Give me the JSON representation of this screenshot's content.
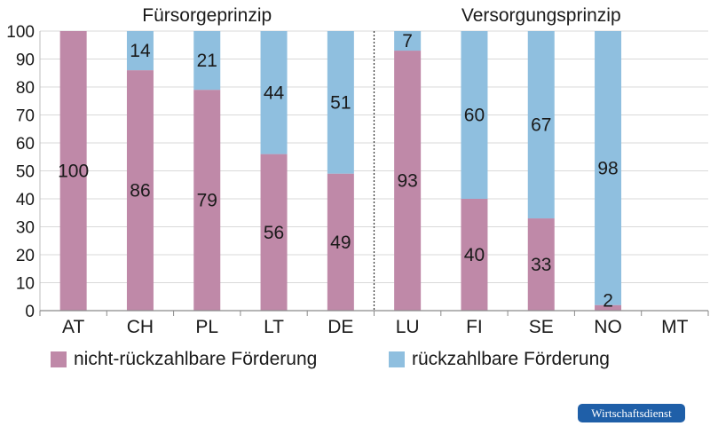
{
  "chart_data": {
    "type": "bar",
    "stacked": true,
    "categories": [
      "AT",
      "CH",
      "PL",
      "LT",
      "DE",
      "LU",
      "FI",
      "SE",
      "NO",
      "MT"
    ],
    "groups": [
      {
        "label": "Fürsorgeprinzip",
        "categories": [
          "AT",
          "CH",
          "PL",
          "LT",
          "DE"
        ]
      },
      {
        "label": "Versorgungsprinzip",
        "categories": [
          "LU",
          "FI",
          "SE",
          "NO",
          "MT"
        ]
      }
    ],
    "series": [
      {
        "name": "nicht-rückzahlbare Förderung",
        "color": "#bf89a8",
        "values": [
          100,
          86,
          79,
          56,
          49,
          93,
          40,
          33,
          2,
          0
        ]
      },
      {
        "name": "rückzahlbare Förderung",
        "color": "#8fbfdf",
        "values": [
          0,
          14,
          21,
          44,
          51,
          7,
          60,
          67,
          98,
          0
        ]
      }
    ],
    "data_labels": [
      [
        "100",
        "86",
        "79",
        "56",
        "49",
        "93",
        "40",
        "33",
        "2",
        ""
      ],
      [
        "",
        "14",
        "21",
        "44",
        "51",
        "7",
        "60",
        "67",
        "98",
        ""
      ]
    ],
    "yticks": [
      "0",
      "10",
      "20",
      "30",
      "40",
      "50",
      "60",
      "70",
      "80",
      "90",
      "100"
    ],
    "ylim": [
      0,
      100
    ],
    "grid": true,
    "legend_position": "bottom"
  },
  "footer": {
    "badge": "Wirtschaftsdienst"
  }
}
